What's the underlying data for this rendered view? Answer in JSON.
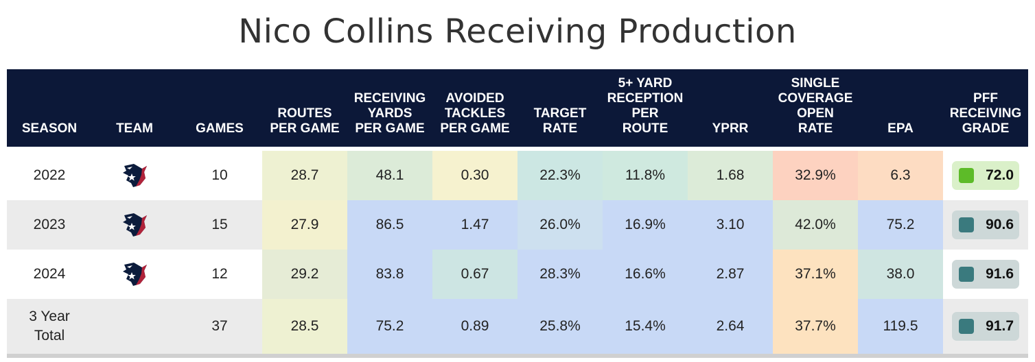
{
  "title": "Nico Collins Receiving Production",
  "columns": [
    "SEASON",
    "TEAM",
    "GAMES",
    "ROUTES\nPER GAME",
    "RECEIVING\nYARDS\nPER GAME",
    "AVOIDED\nTACKLES\nPER GAME",
    "TARGET\nRATE",
    "5+ YARD\nRECEPTION\nPER\nROUTE",
    "YPRR",
    "SINGLE\nCOVERAGE\nOPEN\nRATE",
    "EPA",
    "PFF\nRECEIVING\nGRADE"
  ],
  "team_logo_icon": "houston-texans-logo-icon",
  "rows": [
    {
      "season": "2022",
      "has_logo": true,
      "games": "10",
      "routes": "28.7",
      "yards": "48.1",
      "avoided": "0.30",
      "target": "22.3%",
      "five_yard": "11.8%",
      "yprr": "1.68",
      "single_cov": "32.9%",
      "epa": "6.3",
      "grade": "72.0",
      "colors": [
        "#eef1d2",
        "#dcebd8",
        "#f6f2cf",
        "#cce7e3",
        "#cfe9df",
        "#dcebd8",
        "#fdd2c0",
        "#fddcc2"
      ],
      "grade_bg": "#daf0c9",
      "grade_sq": "#5dbb28"
    },
    {
      "season": "2023",
      "has_logo": true,
      "games": "15",
      "routes": "27.9",
      "yards": "86.5",
      "avoided": "1.47",
      "target": "26.0%",
      "five_yard": "16.9%",
      "yprr": "3.10",
      "single_cov": "42.0%",
      "epa": "75.2",
      "grade": "90.6",
      "colors": [
        "#f3f1cf",
        "#c8d9f6",
        "#c8d9f6",
        "#cde0ef",
        "#c8d9f6",
        "#c8d9f6",
        "#dde9d8",
        "#c8d9f6"
      ],
      "grade_bg": "#cdd8d8",
      "grade_sq": "#3a7a7e"
    },
    {
      "season": "2024",
      "has_logo": true,
      "games": "12",
      "routes": "29.2",
      "yards": "83.8",
      "avoided": "0.67",
      "target": "28.3%",
      "five_yard": "16.6%",
      "yprr": "2.87",
      "single_cov": "37.1%",
      "epa": "38.0",
      "grade": "91.6",
      "colors": [
        "#e6ecd6",
        "#c8d9f6",
        "#cde5e3",
        "#c8d9f6",
        "#c8d9f6",
        "#c8d9f6",
        "#fde2bf",
        "#cfe5e1"
      ],
      "grade_bg": "#cdd8d8",
      "grade_sq": "#3a7a7e"
    },
    {
      "season": "3 Year\nTotal",
      "has_logo": false,
      "games": "37",
      "routes": "28.5",
      "yards": "75.2",
      "avoided": "0.89",
      "target": "25.8%",
      "five_yard": "15.4%",
      "yprr": "2.64",
      "single_cov": "37.7%",
      "epa": "119.5",
      "grade": "91.7",
      "colors": [
        "#eef1d2",
        "#c8d9f6",
        "#c8d9f6",
        "#c8d9f6",
        "#c8d9f6",
        "#c8d9f6",
        "#fde2bf",
        "#c8d9f6"
      ],
      "grade_bg": "#cdd8d8",
      "grade_sq": "#3a7a7e"
    }
  ]
}
